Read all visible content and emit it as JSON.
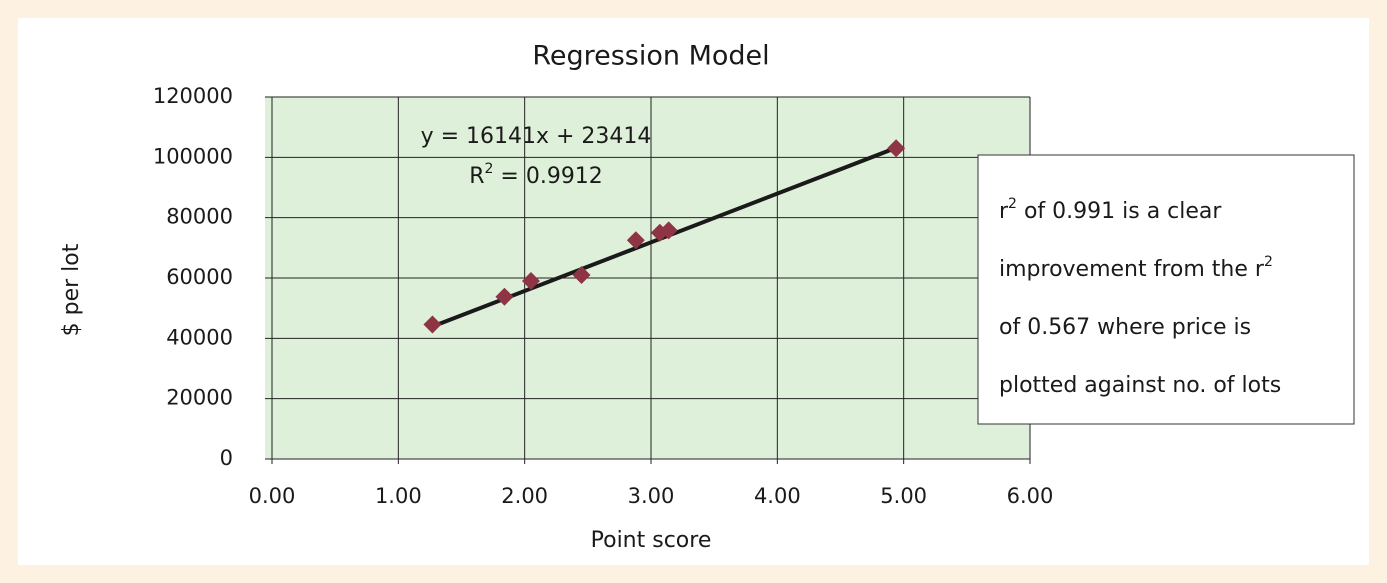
{
  "chart_data": {
    "type": "scatter",
    "title": "Regression Model",
    "x_label": "Point score",
    "y_label": "$ per lot",
    "x": [
      1.27,
      1.84,
      2.05,
      2.45,
      2.88,
      3.07,
      3.14,
      4.94
    ],
    "series": [
      {
        "color": "#8e3444",
        "values": [
          44600,
          53800,
          59000,
          61000,
          72500,
          75000,
          75800,
          103000
        ]
      }
    ],
    "xlim": [
      0,
      6
    ],
    "ylim": [
      0,
      120000
    ],
    "xticks": [
      {
        "value": 0,
        "label": "0.00"
      },
      {
        "value": 1,
        "label": "1.00"
      },
      {
        "value": 2,
        "label": "2.00"
      },
      {
        "value": 3,
        "label": "3.00"
      },
      {
        "value": 4,
        "label": "4.00"
      },
      {
        "value": 5,
        "label": "5.00"
      },
      {
        "value": 6,
        "label": "6.00"
      }
    ],
    "yticks": [
      0,
      20000,
      40000,
      60000,
      80000,
      100000,
      120000
    ],
    "grid": true,
    "trendline": {
      "slope": 16141,
      "intercept": 23414,
      "color": "#1a1a1a",
      "equation": "y = 16141x + 23414",
      "r2": {
        "base": "R",
        "sup": "2",
        "rest": " = 0.9912"
      }
    },
    "annotation": {
      "lines": [
        [
          {
            "text": "r"
          },
          {
            "sup": "2"
          },
          {
            "text": " of 0.991 is a clear"
          }
        ],
        [
          {
            "text": "improvement from the r"
          },
          {
            "sup": "2"
          }
        ],
        [
          {
            "text": "of 0.567 where price is"
          }
        ],
        [
          {
            "text": "plotted against no. of lots"
          }
        ]
      ]
    }
  }
}
